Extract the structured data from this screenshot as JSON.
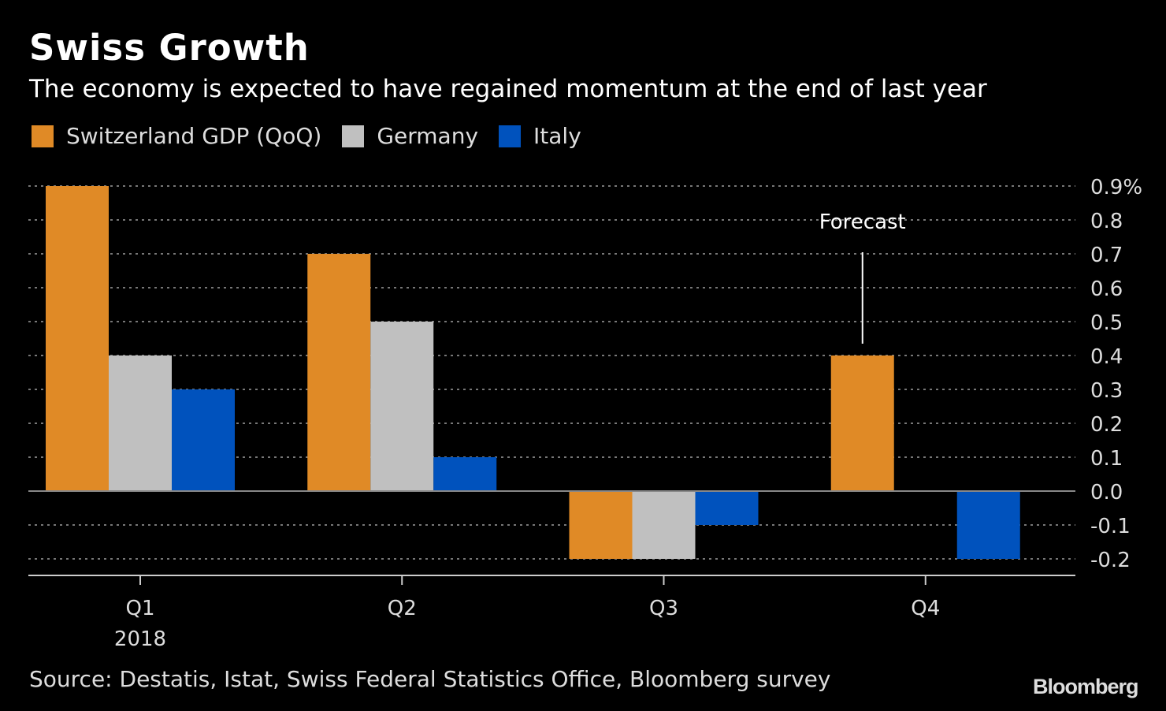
{
  "chart_data": {
    "type": "bar",
    "title": "Swiss Growth",
    "subtitle": "The economy is expected to have regained momentum at the end of last year",
    "categories": [
      "Q1",
      "Q2",
      "Q3",
      "Q4"
    ],
    "category_sublabels": [
      "2018",
      "",
      "",
      ""
    ],
    "series": [
      {
        "name": "Switzerland GDP (QoQ)",
        "color": "#e08a26",
        "values": [
          0.9,
          0.7,
          -0.2,
          0.4
        ]
      },
      {
        "name": "Germany",
        "color": "#c0c0c0",
        "values": [
          0.4,
          0.5,
          -0.2,
          0.0
        ]
      },
      {
        "name": "Italy",
        "color": "#0052bd",
        "values": [
          0.3,
          0.1,
          -0.1,
          -0.2
        ]
      }
    ],
    "ylim": [
      -0.2,
      0.9
    ],
    "yticks": [
      "0.9%",
      "0.8",
      "0.7",
      "0.6",
      "0.5",
      "0.4",
      "0.3",
      "0.2",
      "0.1",
      "0.0",
      "-0.1",
      "-0.2"
    ],
    "ytick_values": [
      0.9,
      0.8,
      0.7,
      0.6,
      0.5,
      0.4,
      0.3,
      0.2,
      0.1,
      0.0,
      -0.1,
      -0.2
    ],
    "yaxis_side": "right",
    "grid": "dotted horizontal",
    "legend_placement": "top-left",
    "annotation": {
      "text": "Forecast",
      "category": "Q4",
      "series": "Switzerland GDP (QoQ)"
    },
    "source": "Source: Destatis, Istat, Swiss Federal Statistics Office, Bloomberg survey",
    "logo": "Bloomberg"
  }
}
